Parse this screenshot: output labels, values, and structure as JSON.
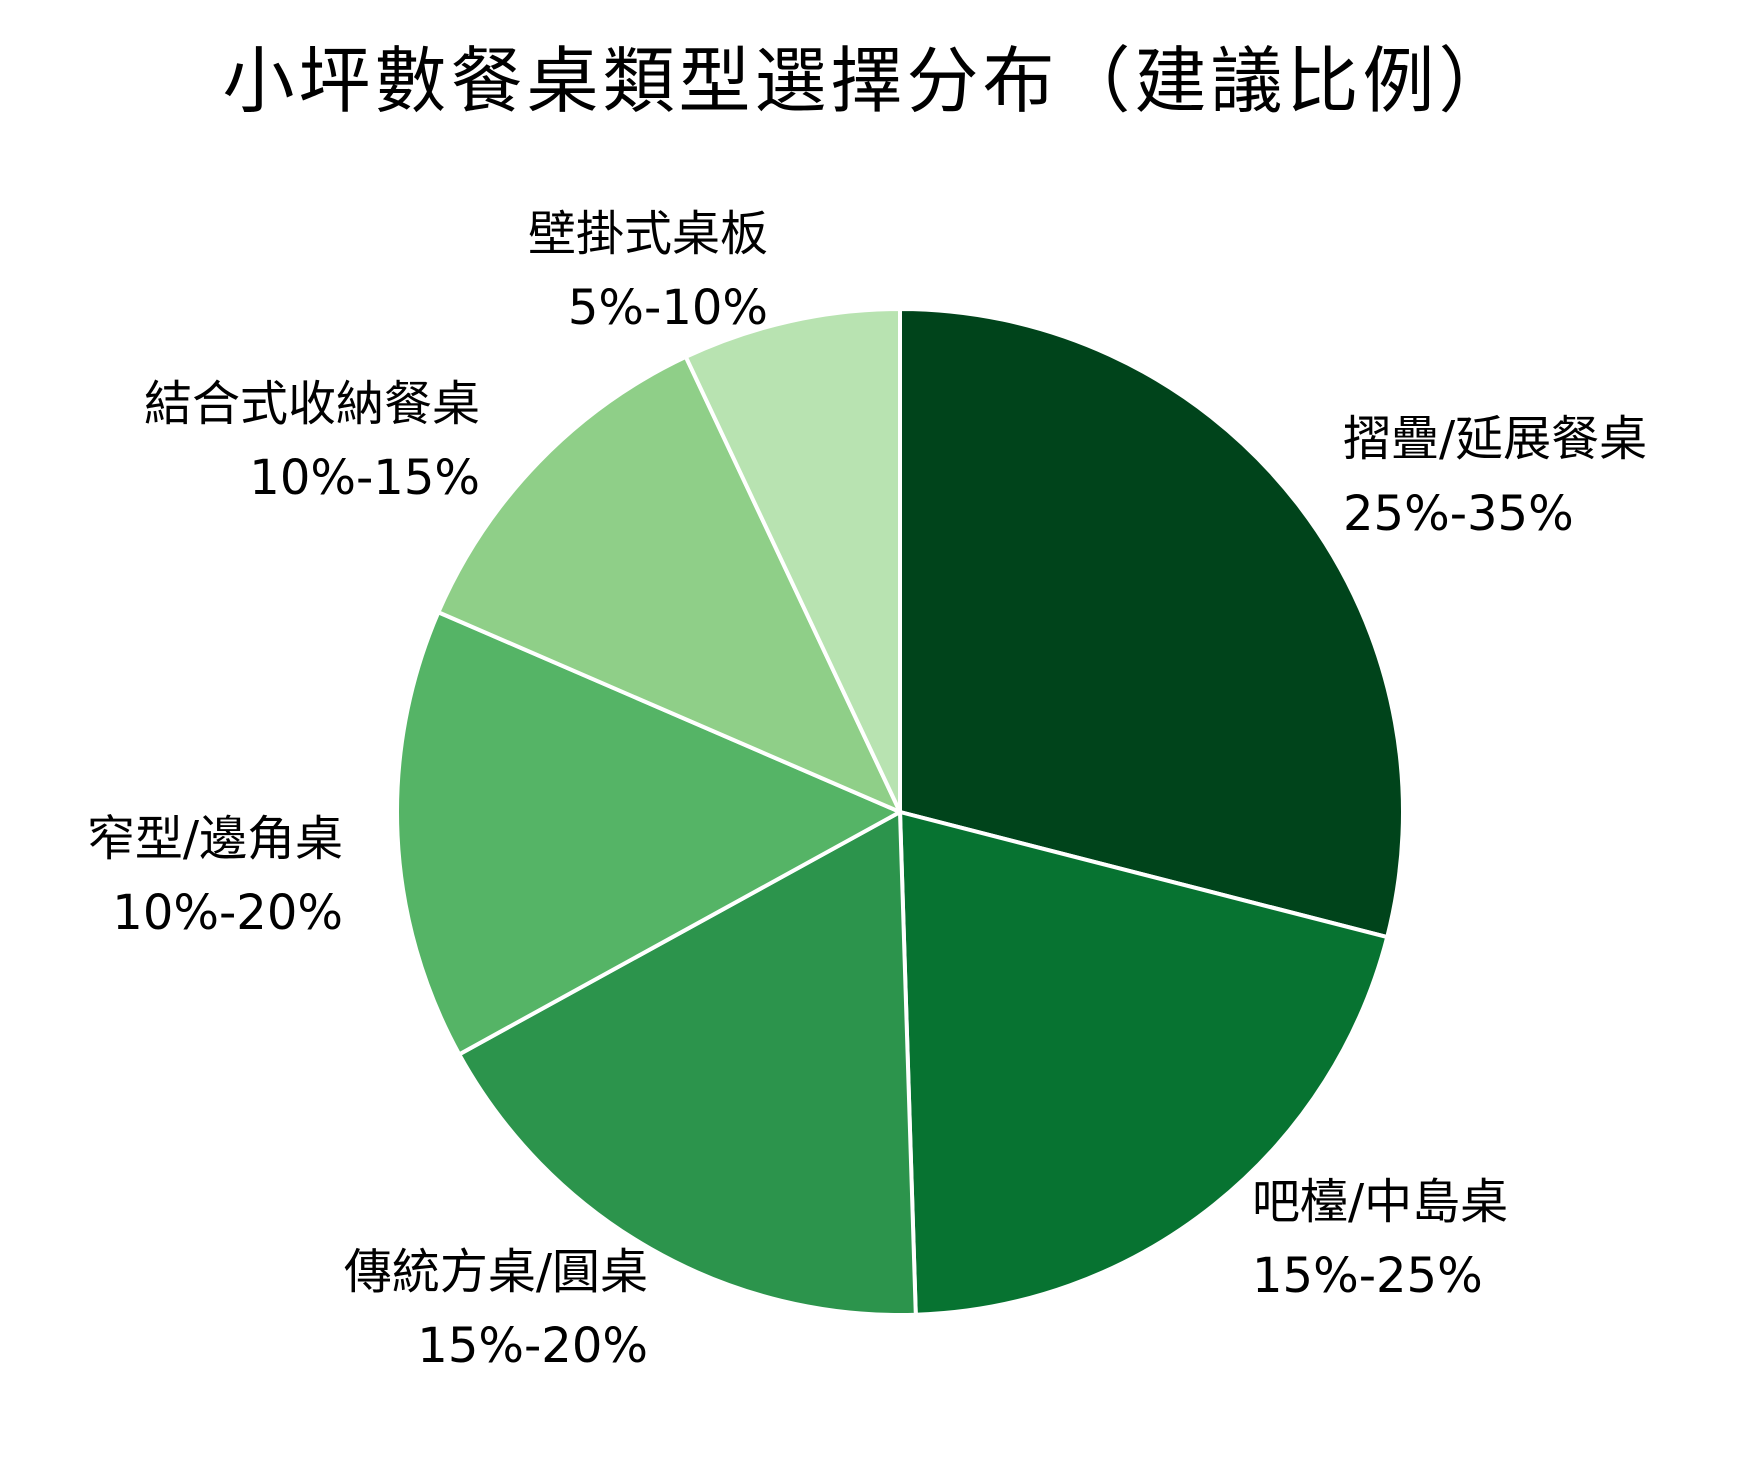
{
  "chart_data": {
    "type": "pie",
    "title": "小坪數餐桌類型選擇分布（建議比例）",
    "slices": [
      {
        "name": "摺疊/延展餐桌",
        "range": "25%-35%",
        "value": 29.0,
        "color": "#00441b"
      },
      {
        "name": "吧檯/中島桌",
        "range": "15%-25%",
        "value": 20.5,
        "color": "#077331"
      },
      {
        "name": "傳統方桌/圓桌",
        "range": "15%-20%",
        "value": 17.5,
        "color": "#2c944c"
      },
      {
        "name": "窄型/邊角桌",
        "range": "10%-20%",
        "value": 14.5,
        "color": "#55b466"
      },
      {
        "name": "結合式收納餐桌",
        "range": "10%-15%",
        "value": 11.5,
        "color": "#8fcf88"
      },
      {
        "name": "壁掛式桌板",
        "range": "5%-10%",
        "value": 7.0,
        "color": "#b8e3b1"
      }
    ]
  }
}
